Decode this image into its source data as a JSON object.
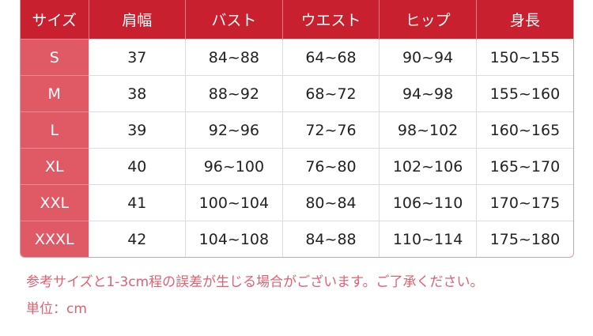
{
  "table": {
    "headers": [
      "サイズ",
      "肩幅",
      "バスト",
      "ウエスト",
      "ヒップ",
      "身長"
    ],
    "rows": [
      [
        "S",
        "37",
        "84~88",
        "64~68",
        "90~94",
        "150~155"
      ],
      [
        "M",
        "38",
        "88~92",
        "68~72",
        "94~98",
        "155~160"
      ],
      [
        "L",
        "39",
        "92~96",
        "72~76",
        "98~102",
        "160~165"
      ],
      [
        "XL",
        "40",
        "96~100",
        "76~80",
        "102~106",
        "165~170"
      ],
      [
        "XXL",
        "41",
        "100~104",
        "80~84",
        "106~110",
        "170~175"
      ],
      [
        "XXXL",
        "42",
        "104~108",
        "84~88",
        "110~114",
        "175~180"
      ]
    ]
  },
  "notes": {
    "disclaimer": "参考サイズと1-3cm程の誤差が生じる場合がございます。ご了承ください。",
    "unit": "単位：cm"
  },
  "colors": {
    "header": "#c8202f",
    "size_column": "#e05a66",
    "note_text": "#e06070"
  }
}
